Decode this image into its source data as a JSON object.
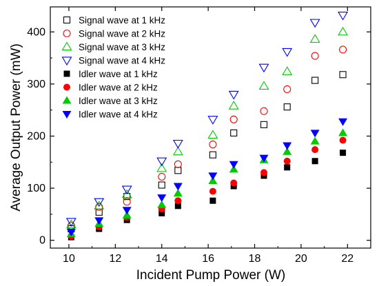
{
  "chart_data": {
    "type": "scatter",
    "xlabel": "Incident Pump Power (W)",
    "ylabel": "Average Output Power (mW)",
    "xlim": [
      9.2,
      23.0
    ],
    "ylim": [
      -15,
      448
    ],
    "xticks": [
      10,
      12,
      14,
      16,
      18,
      20,
      22
    ],
    "yticks": [
      0,
      100,
      200,
      300,
      400
    ],
    "grid": false,
    "legend_position": "top-left",
    "x": [
      10.1,
      11.3,
      12.5,
      14.0,
      14.7,
      16.2,
      17.1,
      18.4,
      19.4,
      20.6,
      21.8
    ],
    "series": [
      {
        "name": "Signal wave at 1 kHz",
        "marker": "square-open",
        "color": "#000000",
        "values": [
          22,
          54,
          84,
          106,
          134,
          164,
          206,
          222,
          256,
          307,
          318
        ]
      },
      {
        "name": "Signal wave at 2 kHz",
        "marker": "circle-open",
        "color": "#ff0000",
        "values": [
          28,
          64,
          74,
          122,
          146,
          184,
          232,
          248,
          290,
          354,
          366
        ]
      },
      {
        "name": "Signal wave at 3 kHz",
        "marker": "triangle-up-open",
        "color": "#00cc00",
        "values": [
          30,
          66,
          88,
          138,
          170,
          202,
          258,
          296,
          324,
          386,
          400
        ]
      },
      {
        "name": "Signal wave at 4 kHz",
        "marker": "triangle-down-open",
        "color": "#0000ff",
        "values": [
          36,
          74,
          98,
          152,
          186,
          232,
          280,
          332,
          362,
          418,
          432
        ]
      },
      {
        "name": "Idler wave at 1 kHz",
        "marker": "square-filled",
        "color": "#000000",
        "values": [
          6,
          22,
          39,
          52,
          66,
          76,
          104,
          124,
          140,
          152,
          168
        ]
      },
      {
        "name": "Idler wave at 2 kHz",
        "marker": "circle-filled",
        "color": "#ff0000",
        "values": [
          8,
          26,
          44,
          60,
          76,
          94,
          110,
          130,
          152,
          174,
          192
        ]
      },
      {
        "name": "Idler wave at 3 kHz",
        "marker": "triangle-up-filled",
        "color": "#00cc00",
        "values": [
          12,
          32,
          48,
          68,
          90,
          114,
          136,
          154,
          170,
          190,
          206
        ]
      },
      {
        "name": "Idler wave at 4 kHz",
        "marker": "triangle-down-filled",
        "color": "#0000ff",
        "values": [
          16,
          38,
          58,
          82,
          104,
          124,
          146,
          158,
          182,
          206,
          228
        ]
      }
    ]
  }
}
